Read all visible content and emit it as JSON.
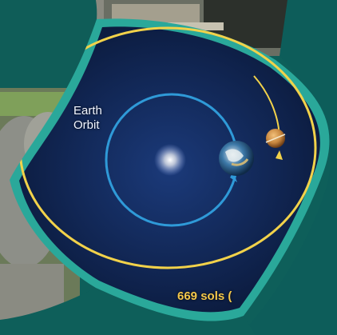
{
  "labels": {
    "earth_orbit_line1": "Earth",
    "earth_orbit_line2": "Orbit",
    "duration": "669 sols ("
  },
  "colors": {
    "frame_teal": "#0e5f5a",
    "border_teal": "#2aa89a",
    "space": "#0c1f4a",
    "earth_orbit": "#2f9ad8",
    "mars_orbit": "#f2d24a",
    "sun": "#ffffff",
    "mars": "#d8a25a"
  },
  "icons": {
    "sun": "sun-icon",
    "earth": "earth-icon",
    "mars": "mars-icon"
  }
}
